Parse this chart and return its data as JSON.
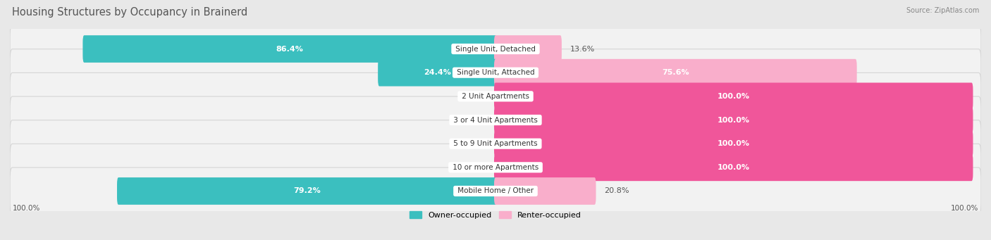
{
  "title": "Housing Structures by Occupancy in Brainerd",
  "source": "Source: ZipAtlas.com",
  "categories": [
    "Single Unit, Detached",
    "Single Unit, Attached",
    "2 Unit Apartments",
    "3 or 4 Unit Apartments",
    "5 to 9 Unit Apartments",
    "10 or more Apartments",
    "Mobile Home / Other"
  ],
  "owner_pct": [
    86.4,
    24.4,
    0.0,
    0.0,
    0.0,
    0.0,
    79.2
  ],
  "renter_pct": [
    13.6,
    75.6,
    100.0,
    100.0,
    100.0,
    100.0,
    20.8
  ],
  "owner_color": "#3BBFBF",
  "renter_color_strong": "#F0569A",
  "renter_color_light": "#F9AECB",
  "panel_color": "#F2F2F2",
  "panel_edge_color": "#D5D5D5",
  "bg_color": "#E8E8E8",
  "title_color": "#555555",
  "label_color_dark": "#555555",
  "label_color_white": "#FFFFFF",
  "title_fontsize": 10.5,
  "label_fontsize": 8,
  "bar_height": 0.55,
  "x_left_label": "100.0%",
  "x_right_label": "100.0%",
  "xlim_left": -100,
  "xlim_right": 100,
  "legend_label_owner": "Owner-occupied",
  "legend_label_renter": "Renter-occupied"
}
